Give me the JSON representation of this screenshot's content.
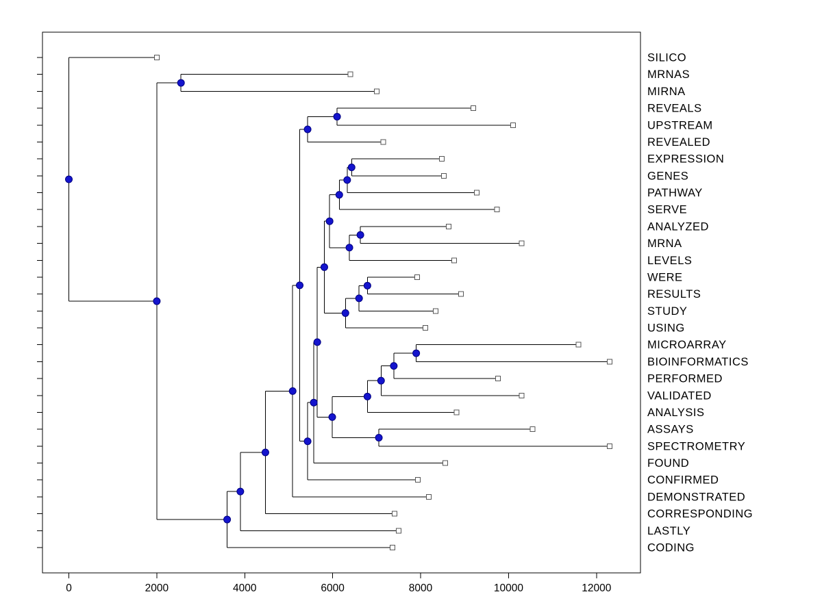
{
  "figure": {
    "background": "#ffffff",
    "border_color": "#000000"
  },
  "chart_data": {
    "type": "dendrogram",
    "orientation": "horizontal-root-left",
    "title": "",
    "xlabel": "",
    "ylabel": "",
    "axes": {
      "x_ticks": [
        "0",
        "2000",
        "4000",
        "6000",
        "8000",
        "10000",
        "12000"
      ],
      "x_tick_values": [
        0,
        2000,
        4000,
        6000,
        8000,
        10000,
        12000
      ],
      "x_range": [
        -600,
        13000
      ],
      "grid": false,
      "box": true
    },
    "style": {
      "line_color": "#000000",
      "branch_marker": "filled-circle",
      "branch_marker_fill": "#1414cd",
      "branch_marker_stroke": "#000080",
      "leaf_marker": "open-square",
      "leaf_marker_fill": "#ffffff",
      "leaf_marker_stroke": "#555555",
      "label_color": "#000000"
    },
    "leaves": [
      {
        "label": "SILICO",
        "distance": 2000
      },
      {
        "label": "MRNAS",
        "distance": 6400
      },
      {
        "label": "MIRNA",
        "distance": 7000
      },
      {
        "label": "REVEALS",
        "distance": 9200
      },
      {
        "label": "UPSTREAM",
        "distance": 10100
      },
      {
        "label": "REVEALED",
        "distance": 7150
      },
      {
        "label": "EXPRESSION",
        "distance": 8480
      },
      {
        "label": "GENES",
        "distance": 8530
      },
      {
        "label": "PATHWAY",
        "distance": 9280
      },
      {
        "label": "SERVE",
        "distance": 9740
      },
      {
        "label": "ANALYZED",
        "distance": 8640
      },
      {
        "label": "MRNA",
        "distance": 10300
      },
      {
        "label": "LEVELS",
        "distance": 8760
      },
      {
        "label": "WERE",
        "distance": 7920
      },
      {
        "label": "RESULTS",
        "distance": 8920
      },
      {
        "label": "STUDY",
        "distance": 8340
      },
      {
        "label": "USING",
        "distance": 8110
      },
      {
        "label": "MICROARRAY",
        "distance": 11590
      },
      {
        "label": "BIOINFORMATICS",
        "distance": 12300
      },
      {
        "label": "PERFORMED",
        "distance": 9760
      },
      {
        "label": "VALIDATED",
        "distance": 10300
      },
      {
        "label": "ANALYSIS",
        "distance": 8820
      },
      {
        "label": "ASSAYS",
        "distance": 10550
      },
      {
        "label": "SPECTROMETRY",
        "distance": 12300
      },
      {
        "label": "FOUND",
        "distance": 8560
      },
      {
        "label": "CONFIRMED",
        "distance": 7940
      },
      {
        "label": "DEMONSTRATED",
        "distance": 8190
      },
      {
        "label": "CORRESPONDING",
        "distance": 7410
      },
      {
        "label": "LASTLY",
        "distance": 7500
      },
      {
        "label": "CODING",
        "distance": 7360
      }
    ],
    "internal_nodes": [
      {
        "id": "root",
        "distance": 0,
        "children": [
          "leaf:SILICO",
          "node:nTop"
        ]
      },
      {
        "id": "nTop",
        "distance": 2000,
        "children": [
          "node:nMi",
          "node:nBot"
        ]
      },
      {
        "id": "nMi",
        "distance": 2550,
        "children": [
          "leaf:MRNAS",
          "leaf:MIRNA"
        ]
      },
      {
        "id": "nBot",
        "distance": 3600,
        "children": [
          "node:nBot2",
          "leaf:CODING"
        ]
      },
      {
        "id": "nBot2",
        "distance": 3900,
        "children": [
          "node:nBot3",
          "leaf:LASTLY"
        ]
      },
      {
        "id": "nBot3",
        "distance": 4470,
        "children": [
          "node:nBot4",
          "leaf:CORRESPONDING"
        ]
      },
      {
        "id": "nBot4",
        "distance": 5090,
        "children": [
          "node:nMid",
          "leaf:DEMONSTRATED"
        ]
      },
      {
        "id": "nMid",
        "distance": 5250,
        "children": [
          "node:nRev2",
          "node:nMid2"
        ]
      },
      {
        "id": "nRev2",
        "distance": 5430,
        "children": [
          "node:nRev1",
          "leaf:REVEALED"
        ]
      },
      {
        "id": "nRev1",
        "distance": 6100,
        "children": [
          "leaf:REVEALS",
          "leaf:UPSTREAM"
        ]
      },
      {
        "id": "nMid2",
        "distance": 5430,
        "children": [
          "node:nMid3",
          "leaf:CONFIRMED"
        ]
      },
      {
        "id": "nMid3",
        "distance": 5570,
        "children": [
          "node:nMid4",
          "leaf:FOUND"
        ]
      },
      {
        "id": "nMid4",
        "distance": 5650,
        "children": [
          "node:nEW",
          "node:nMicAss"
        ]
      },
      {
        "id": "nEW",
        "distance": 5810,
        "children": [
          "node:nExpAna",
          "node:nWer3"
        ]
      },
      {
        "id": "nExpAna",
        "distance": 5930,
        "children": [
          "node:nExp3",
          "node:nAna2"
        ]
      },
      {
        "id": "nExp3",
        "distance": 6150,
        "children": [
          "node:nExp2",
          "leaf:SERVE"
        ]
      },
      {
        "id": "nExp2",
        "distance": 6330,
        "children": [
          "node:nExp1",
          "leaf:PATHWAY"
        ]
      },
      {
        "id": "nExp1",
        "distance": 6430,
        "children": [
          "leaf:EXPRESSION",
          "leaf:GENES"
        ]
      },
      {
        "id": "nAna2",
        "distance": 6380,
        "children": [
          "node:nAna1",
          "leaf:LEVELS"
        ]
      },
      {
        "id": "nAna1",
        "distance": 6630,
        "children": [
          "leaf:ANALYZED",
          "leaf:MRNA"
        ]
      },
      {
        "id": "nWer3",
        "distance": 6290,
        "children": [
          "node:nWer2",
          "leaf:USING"
        ]
      },
      {
        "id": "nWer2",
        "distance": 6600,
        "children": [
          "node:nWer1",
          "leaf:STUDY"
        ]
      },
      {
        "id": "nWer1",
        "distance": 6790,
        "children": [
          "leaf:WERE",
          "leaf:RESULTS"
        ]
      },
      {
        "id": "nMicAss",
        "distance": 5990,
        "children": [
          "node:nMic4",
          "node:nAss"
        ]
      },
      {
        "id": "nMic4",
        "distance": 6790,
        "children": [
          "node:nMic3",
          "leaf:ANALYSIS"
        ]
      },
      {
        "id": "nMic3",
        "distance": 7100,
        "children": [
          "node:nMic2",
          "leaf:VALIDATED"
        ]
      },
      {
        "id": "nMic2",
        "distance": 7390,
        "children": [
          "node:nMic1",
          "leaf:PERFORMED"
        ]
      },
      {
        "id": "nMic1",
        "distance": 7900,
        "children": [
          "leaf:MICROARRAY",
          "leaf:BIOINFORMATICS"
        ]
      },
      {
        "id": "nAss",
        "distance": 7050,
        "children": [
          "leaf:ASSAYS",
          "leaf:SPECTROMETRY"
        ]
      }
    ]
  }
}
